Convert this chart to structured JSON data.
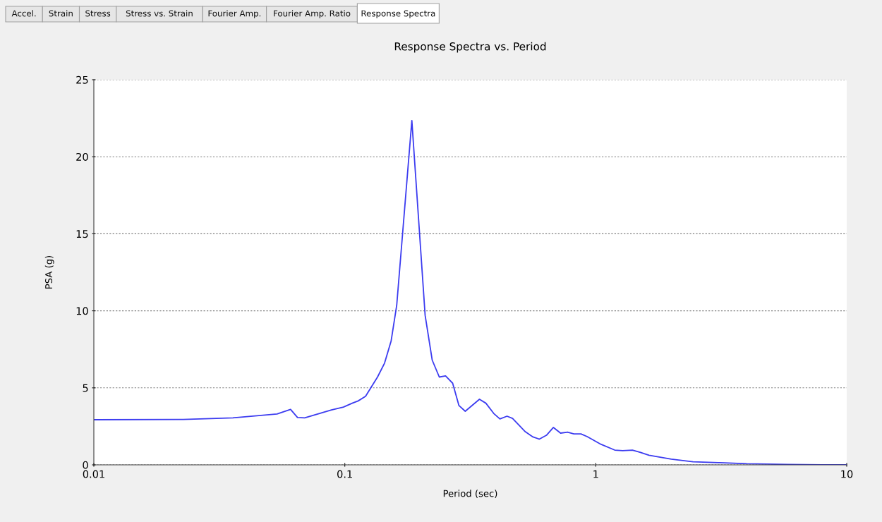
{
  "chart_data": {
    "type": "line",
    "title": "Response Spectra vs. Period",
    "xlabel": "Period (sec)",
    "ylabel": "PSA (g)",
    "annotations": [
      "Accel.",
      "Strain",
      "Stress",
      "Stress vs. Strain",
      "Fourier Amp.",
      "Fourier Amp. Ratio",
      "Response Spectra"
    ],
    "x": [
      0.01,
      0.0227,
      0.0358,
      0.0537,
      0.0608,
      0.0648,
      0.0692,
      0.0885,
      0.0987,
      0.107,
      0.113,
      0.121,
      0.135,
      0.144,
      0.153,
      0.161,
      0.185,
      0.209,
      0.223,
      0.238,
      0.252,
      0.269,
      0.285,
      0.302,
      0.344,
      0.365,
      0.392,
      0.415,
      0.443,
      0.466,
      0.524,
      0.562,
      0.596,
      0.636,
      0.678,
      0.724,
      0.772,
      0.818,
      0.873,
      0.925,
      1.05,
      1.19,
      1.28,
      1.4,
      1.5,
      1.63,
      2.0,
      2.44,
      3.12,
      3.99,
      5.81,
      7.97,
      10
    ],
    "series": [
      {
        "color": "#3c3cf0",
        "values": [
          2.93,
          2.95,
          3.05,
          3.3,
          3.6,
          3.07,
          3.05,
          3.57,
          3.75,
          4.0,
          4.15,
          4.45,
          5.7,
          6.6,
          8.05,
          10.35,
          22.35,
          9.7,
          6.8,
          5.7,
          5.77,
          5.3,
          3.85,
          3.48,
          4.26,
          4.0,
          3.34,
          2.98,
          3.16,
          3.02,
          2.15,
          1.81,
          1.67,
          1.92,
          2.43,
          2.06,
          2.12,
          2.01,
          2.01,
          1.83,
          1.33,
          0.96,
          0.92,
          0.96,
          0.82,
          0.62,
          0.37,
          0.2,
          0.14,
          0.07,
          0.03,
          0.01,
          0
        ]
      }
    ],
    "log": "x",
    "xlim": [
      0.01,
      10
    ],
    "xticks": [
      0.01,
      0.1,
      1,
      10
    ],
    "ylim": [
      0,
      25
    ],
    "yticks": [
      0,
      5,
      10,
      15,
      20,
      25
    ],
    "grid": "y",
    "line_style": "solid",
    "marker": "none"
  }
}
